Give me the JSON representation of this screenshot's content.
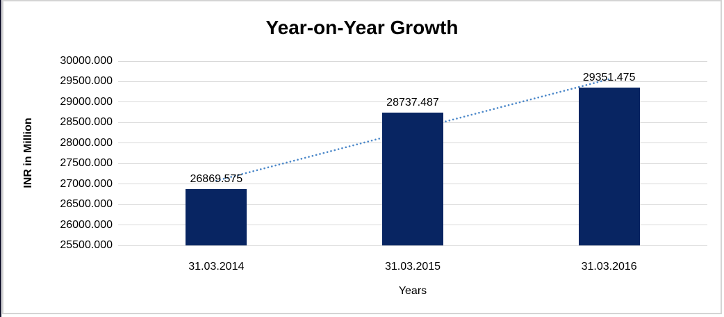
{
  "window": {
    "background": "#ffffff",
    "frame_border_color": "#d4d4d4",
    "left_edge_color": "#15152e"
  },
  "chart_data": {
    "type": "bar",
    "title": "Year-on-Year Growth",
    "categories": [
      "31.03.2014",
      "31.03.2015",
      "31.03.2016"
    ],
    "values": [
      26869.575,
      28737.487,
      29351.475
    ],
    "data_labels": [
      "26869.575",
      "28737.487",
      "29351.475"
    ],
    "xlabel": "Years",
    "ylabel": "INR in Million",
    "ylim": [
      25500,
      30000
    ],
    "ytick_interval": 500,
    "ytick_labels": [
      "25500.000",
      "26000.000",
      "26500.000",
      "27000.000",
      "27500.000",
      "28000.000",
      "28500.000",
      "29000.000",
      "29500.000",
      "30000.000"
    ],
    "grid": true,
    "legend": null,
    "bar_color": "#082562",
    "gridline_color": "#d9d9d9",
    "text_color": "#000000",
    "trendline": {
      "type": "linear",
      "style": "dotted",
      "color": "#4a87c9"
    }
  }
}
